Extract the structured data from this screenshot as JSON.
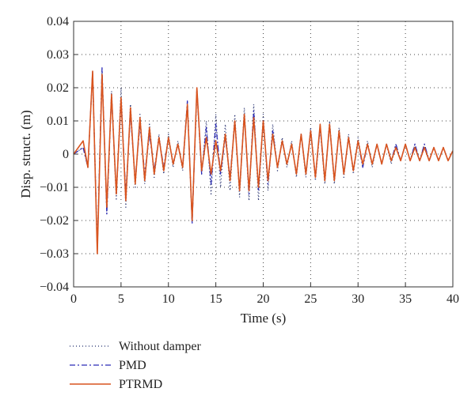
{
  "chart_data": {
    "type": "line",
    "title": "",
    "xlabel": "Time (s)",
    "ylabel": "Disp. struct. (m)",
    "xlim": [
      0,
      40
    ],
    "ylim": [
      -0.04,
      0.04
    ],
    "xticks": [
      0,
      5,
      10,
      15,
      20,
      25,
      30,
      35,
      40
    ],
    "xtick_labels": [
      "0",
      "5",
      "10",
      "15",
      "20",
      "25",
      "30",
      "35",
      "40"
    ],
    "yticks": [
      0.04,
      0.03,
      0.02,
      0.01,
      0,
      -0.01,
      -0.02,
      -0.03,
      -0.04
    ],
    "ytick_labels": [
      "0.04",
      "0.03",
      "0.02",
      "0.01",
      "0",
      "−0.01",
      "−0.02",
      "−0.03",
      "−0.04"
    ],
    "grid": true,
    "legend_position": "below-left",
    "series": [
      {
        "name": "Without damper",
        "color": "#1f2a6b",
        "style": "dotted",
        "x": [
          0,
          1,
          1.5,
          2,
          2.5,
          3,
          3.5,
          4,
          4.5,
          5,
          5.5,
          6,
          6.5,
          7,
          7.5,
          8,
          8.5,
          9,
          9.5,
          10,
          10.5,
          11,
          11.5,
          12,
          12.5,
          13,
          13.5,
          14,
          14.5,
          15,
          15.5,
          16,
          16.5,
          17,
          17.5,
          18,
          18.5,
          19,
          19.5,
          20,
          20.5,
          21,
          21.5,
          22,
          22.5,
          23,
          23.5,
          24,
          24.5,
          25,
          25.5,
          26,
          26.5,
          27,
          27.5,
          28,
          28.5,
          29,
          29.5,
          30,
          30.5,
          31,
          31.5,
          32,
          32.5,
          33,
          33.5,
          34,
          34.5,
          35,
          35.5,
          36,
          36.5,
          37,
          37.5,
          38,
          38.5,
          39,
          39.5,
          40
        ],
        "y": [
          0,
          0.002,
          -0.004,
          0.024,
          -0.028,
          0.025,
          -0.018,
          0.019,
          -0.014,
          0.02,
          -0.016,
          0.015,
          -0.01,
          0.012,
          -0.009,
          0.009,
          -0.007,
          0.006,
          -0.006,
          0.006,
          -0.004,
          0.004,
          -0.005,
          0.015,
          -0.02,
          0.019,
          -0.006,
          0.01,
          -0.012,
          0.012,
          -0.01,
          0.009,
          -0.011,
          0.012,
          -0.013,
          0.014,
          -0.014,
          0.015,
          -0.014,
          0.012,
          -0.011,
          0.009,
          -0.005,
          0.005,
          -0.004,
          0.004,
          -0.007,
          0.006,
          -0.007,
          0.008,
          -0.008,
          0.008,
          -0.009,
          0.01,
          -0.009,
          0.008,
          -0.007,
          0.006,
          -0.006,
          0.005,
          -0.004,
          0.004,
          -0.004,
          0.003,
          -0.003,
          0.003,
          -0.003,
          0.003,
          -0.002,
          0.003,
          -0.002,
          0.003,
          -0.002,
          0.003,
          -0.002,
          0.002,
          -0.002,
          0.002,
          -0.002,
          0.001
        ]
      },
      {
        "name": "PMD",
        "color": "#2b2bb8",
        "style": "dashdot",
        "x": [
          0,
          1,
          1.5,
          2,
          2.5,
          3,
          3.5,
          4,
          4.5,
          5,
          5.5,
          6,
          6.5,
          7,
          7.5,
          8,
          8.5,
          9,
          9.5,
          10,
          10.5,
          11,
          11.5,
          12,
          12.5,
          13,
          13.5,
          14,
          14.5,
          15,
          15.5,
          16,
          16.5,
          17,
          17.5,
          18,
          18.5,
          19,
          19.5,
          20,
          20.5,
          21,
          21.5,
          22,
          22.5,
          23,
          23.5,
          24,
          24.5,
          25,
          25.5,
          26,
          26.5,
          27,
          27.5,
          28,
          28.5,
          29,
          29.5,
          30,
          30.5,
          31,
          31.5,
          32,
          32.5,
          33,
          33.5,
          34,
          34.5,
          35,
          35.5,
          36,
          36.5,
          37,
          37.5,
          38,
          38.5,
          39,
          39.5,
          40
        ],
        "y": [
          0,
          0.002,
          -0.004,
          0.025,
          -0.029,
          0.026,
          -0.018,
          0.018,
          -0.012,
          0.016,
          -0.012,
          0.012,
          -0.008,
          0.009,
          -0.006,
          0.006,
          -0.005,
          0.005,
          -0.004,
          0.005,
          -0.003,
          0.003,
          -0.004,
          0.016,
          -0.021,
          0.02,
          -0.006,
          0.008,
          -0.009,
          0.009,
          -0.006,
          0.005,
          -0.007,
          0.01,
          -0.011,
          0.012,
          -0.012,
          0.013,
          -0.011,
          0.01,
          -0.009,
          0.007,
          -0.004,
          0.004,
          -0.003,
          0.003,
          -0.006,
          0.006,
          -0.006,
          0.007,
          -0.007,
          0.008,
          -0.008,
          0.009,
          -0.008,
          0.007,
          -0.006,
          0.005,
          -0.005,
          0.004,
          -0.004,
          0.003,
          -0.003,
          0.003,
          -0.003,
          0.003,
          -0.002,
          0.003,
          -0.002,
          0.003,
          -0.002,
          0.003,
          -0.002,
          0.003,
          -0.002,
          0.002,
          -0.002,
          0.002,
          -0.002,
          0.001
        ]
      },
      {
        "name": "PTRMD",
        "color": "#d9541e",
        "style": "solid",
        "x": [
          0,
          1,
          1.5,
          2,
          2.5,
          3,
          3.5,
          4,
          4.5,
          5,
          5.5,
          6,
          6.5,
          7,
          7.5,
          8,
          8.5,
          9,
          9.5,
          10,
          10.5,
          11,
          11.5,
          12,
          12.5,
          13,
          13.5,
          14,
          14.5,
          15,
          15.5,
          16,
          16.5,
          17,
          17.5,
          18,
          18.5,
          19,
          19.5,
          20,
          20.5,
          21,
          21.5,
          22,
          22.5,
          23,
          23.5,
          24,
          24.5,
          25,
          25.5,
          26,
          26.5,
          27,
          27.5,
          28,
          28.5,
          29,
          29.5,
          30,
          30.5,
          31,
          31.5,
          32,
          32.5,
          33,
          33.5,
          34,
          34.5,
          35,
          35.5,
          36,
          36.5,
          37,
          37.5,
          38,
          38.5,
          39,
          39.5,
          40
        ],
        "y": [
          0,
          0.004,
          -0.004,
          0.025,
          -0.03,
          0.024,
          -0.016,
          0.018,
          -0.012,
          0.017,
          -0.014,
          0.014,
          -0.009,
          0.011,
          -0.008,
          0.008,
          -0.006,
          0.005,
          -0.005,
          0.005,
          -0.003,
          0.003,
          -0.004,
          0.015,
          -0.02,
          0.02,
          -0.005,
          0.005,
          -0.006,
          0.004,
          -0.005,
          0.006,
          -0.008,
          0.01,
          -0.011,
          0.012,
          -0.011,
          0.011,
          -0.01,
          0.01,
          -0.008,
          0.006,
          -0.004,
          0.004,
          -0.003,
          0.003,
          -0.006,
          0.006,
          -0.006,
          0.007,
          -0.007,
          0.009,
          -0.008,
          0.009,
          -0.008,
          0.007,
          -0.006,
          0.005,
          -0.005,
          0.004,
          -0.003,
          0.003,
          -0.003,
          0.003,
          -0.003,
          0.003,
          -0.002,
          0.002,
          -0.002,
          0.003,
          -0.002,
          0.002,
          -0.002,
          0.002,
          -0.002,
          0.002,
          -0.002,
          0.002,
          -0.002,
          0.001
        ]
      }
    ]
  }
}
